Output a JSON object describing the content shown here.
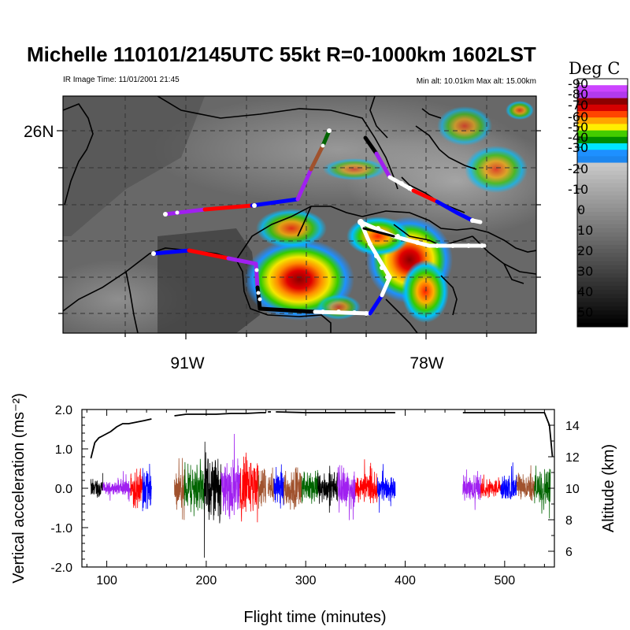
{
  "title": "Michelle 110101/2145UTC 55kt  R=0-1000km 1602LST",
  "ir_time": "IR Image Time: 11/01/2001 21:45",
  "alt_range": "Min alt: 10.01km  Max alt: 15.00km",
  "map": {
    "lat_labels": [
      "26N"
    ],
    "lon_labels": [
      "91W",
      "78W"
    ]
  },
  "colorbar": {
    "title": "Deg C",
    "labels": [
      "-90",
      "-80",
      "-70",
      "-60",
      "-50",
      "-40",
      "-30",
      "-20",
      "-10",
      "0",
      "10",
      "20",
      "30",
      "40",
      "50"
    ],
    "colors": {
      "-90": "#ffffff",
      "-85": "#cc44ff",
      "-80": "#b23aee",
      "-75": "#8b0000",
      "-70": "#d40000",
      "-65": "#ff4400",
      "-60": "#ffa500",
      "-55": "#ffee00",
      "-50": "#44cc00",
      "-45": "#008c00",
      "-40": "#00e5ff",
      "-35": "#1e90ff",
      "-30": "#1c86ee"
    }
  },
  "chart_data": {
    "type": "line",
    "xlabel": "Flight time (minutes)",
    "ylabel_left": "Vertical acceleration (ms⁻²)",
    "ylabel_right": "Altitude (km)",
    "xlim": [
      75,
      550
    ],
    "xticks": [
      "100",
      "200",
      "300",
      "400",
      "500"
    ],
    "ylim_left": [
      -2.0,
      2.0
    ],
    "yticks_left": [
      "2.0",
      "1.0",
      "0.0",
      "-1.0",
      "-2.0"
    ],
    "ylim_right": [
      5,
      15
    ],
    "yticks_right": [
      "14",
      "12",
      "10",
      "8",
      "6"
    ],
    "altitude_series": [
      {
        "x": [
          84,
          88,
          92,
          98,
          104,
          110,
          116,
          122,
          130,
          138,
          145
        ],
        "y": [
          11.9,
          12.9,
          13.2,
          13.4,
          13.6,
          13.9,
          14.1,
          14.1,
          14.2,
          14.3,
          14.4
        ]
      },
      {
        "x": [
          168,
          180,
          195,
          210,
          225,
          240,
          255,
          260
        ],
        "y": [
          14.6,
          14.7,
          14.7,
          14.7,
          14.75,
          14.75,
          14.8,
          14.8
        ]
      },
      {
        "x": [
          262,
          265
        ],
        "y": [
          14.85,
          14.85
        ]
      },
      {
        "x": [
          270,
          300,
          330,
          360,
          390
        ],
        "y": [
          14.85,
          14.8,
          14.8,
          14.8,
          14.8
        ]
      },
      {
        "x": [
          458,
          480,
          500,
          520,
          540,
          545,
          548
        ],
        "y": [
          14.8,
          14.8,
          14.8,
          14.8,
          14.8,
          14.0,
          12.0
        ]
      }
    ],
    "accel_segments": [
      {
        "x0": 84,
        "x1": 96,
        "color": "#000000",
        "amp": 0.25
      },
      {
        "x0": 96,
        "x1": 110,
        "color": "#a020f0",
        "amp": 0.15
      },
      {
        "x0": 110,
        "x1": 124,
        "color": "#a020f0",
        "amp": 0.2
      },
      {
        "x0": 124,
        "x1": 136,
        "color": "#ff0000",
        "amp": 0.5
      },
      {
        "x0": 136,
        "x1": 145,
        "color": "#0000ff",
        "amp": 0.6
      },
      {
        "x0": 168,
        "x1": 178,
        "color": "#a0522d",
        "amp": 0.5
      },
      {
        "x0": 178,
        "x1": 198,
        "color": "#006400",
        "amp": 0.6
      },
      {
        "x0": 198,
        "x1": 215,
        "color": "#000000",
        "amp": 0.9
      },
      {
        "x0": 215,
        "x1": 234,
        "color": "#a020f0",
        "amp": 0.7
      },
      {
        "x0": 234,
        "x1": 252,
        "color": "#ff0000",
        "amp": 0.8
      },
      {
        "x0": 252,
        "x1": 260,
        "color": "#a0522d",
        "amp": 0.5
      },
      {
        "x0": 262,
        "x1": 268,
        "color": "#a0522d",
        "amp": 0.4
      },
      {
        "x0": 268,
        "x1": 278,
        "color": "#0000ff",
        "amp": 0.5
      },
      {
        "x0": 278,
        "x1": 296,
        "color": "#a0522d",
        "amp": 0.5
      },
      {
        "x0": 296,
        "x1": 312,
        "color": "#006400",
        "amp": 0.4
      },
      {
        "x0": 312,
        "x1": 332,
        "color": "#000000",
        "amp": 0.4
      },
      {
        "x0": 332,
        "x1": 350,
        "color": "#a020f0",
        "amp": 0.5
      },
      {
        "x0": 350,
        "x1": 372,
        "color": "#ff0000",
        "amp": 0.35
      },
      {
        "x0": 372,
        "x1": 390,
        "color": "#0000ff",
        "amp": 0.3
      },
      {
        "x0": 458,
        "x1": 476,
        "color": "#a020f0",
        "amp": 0.3
      },
      {
        "x0": 476,
        "x1": 496,
        "color": "#ff0000",
        "amp": 0.25
      },
      {
        "x0": 496,
        "x1": 512,
        "color": "#0000ff",
        "amp": 0.3
      },
      {
        "x0": 512,
        "x1": 530,
        "color": "#a0522d",
        "amp": 0.35
      },
      {
        "x0": 530,
        "x1": 546,
        "color": "#006400",
        "amp": 0.5
      }
    ]
  }
}
